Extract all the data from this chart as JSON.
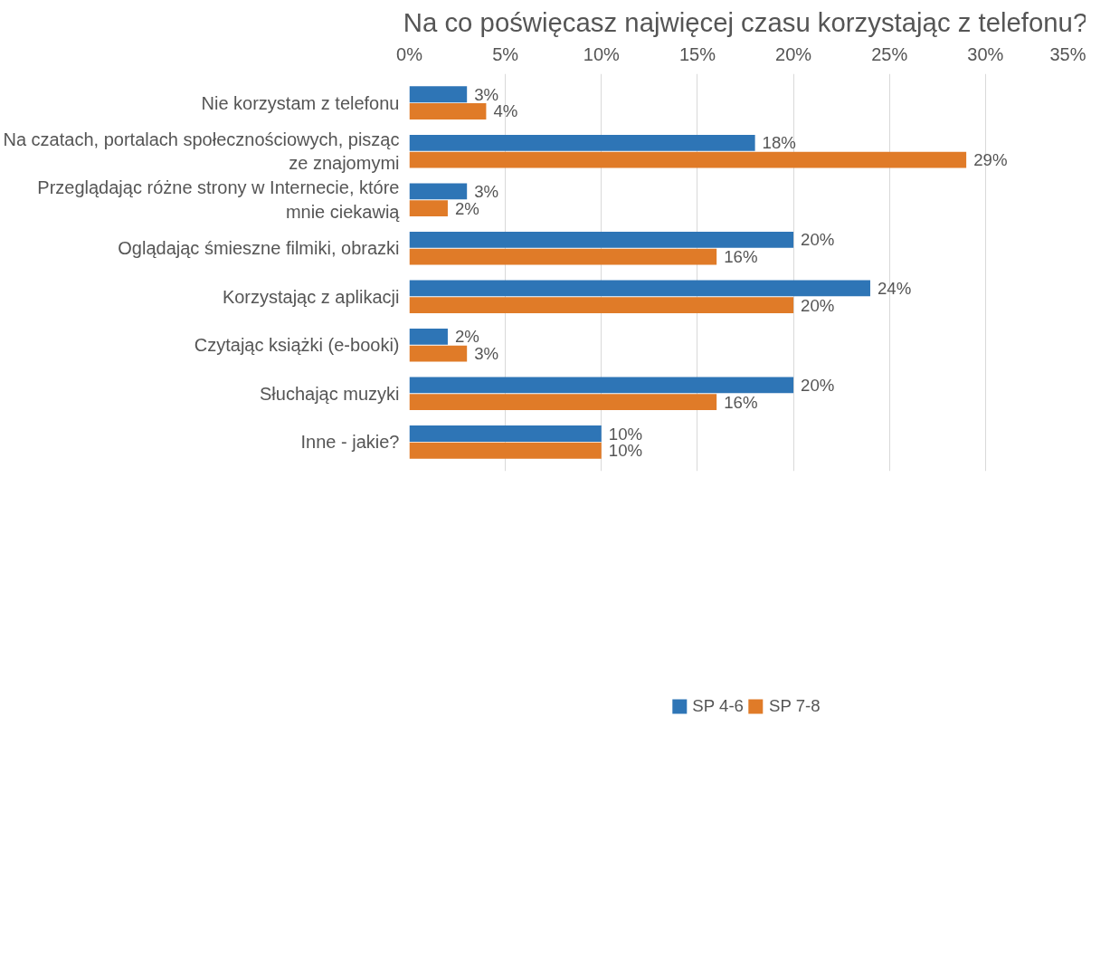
{
  "chart_data": {
    "type": "bar",
    "orientation": "horizontal",
    "title": "Na co poświęcasz najwięcej czasu korzystając z telefonu?",
    "categories": [
      "Nie korzystam z telefonu",
      "Na czatach, portalach społecznościowych, pisząc ze znajomymi",
      "Przeglądając różne strony w Internecie, które mnie ciekawią",
      "Oglądając śmieszne filmiki, obrazki",
      "Korzystając z aplikacji",
      "Czytając książki (e-booki)",
      "Słuchając muzyki",
      "Inne - jakie?"
    ],
    "series": [
      {
        "name": "SP 4-6",
        "color": "#2e75b6",
        "values": [
          3,
          18,
          3,
          20,
          24,
          2,
          20,
          10
        ],
        "value_labels": [
          "3%",
          "18%",
          "3%",
          "20%",
          "24%",
          "2%",
          "20%",
          "10%"
        ]
      },
      {
        "name": "SP 7-8",
        "color": "#e07b28",
        "values": [
          4,
          29,
          2,
          16,
          20,
          3,
          16,
          10
        ],
        "value_labels": [
          "4%",
          "29%",
          "2%",
          "16%",
          "20%",
          "3%",
          "16%",
          "10%"
        ]
      }
    ],
    "xlim": [
      0,
      35
    ],
    "xticks": [
      {
        "value": 0,
        "label": "0%"
      },
      {
        "value": 5,
        "label": "5%"
      },
      {
        "value": 10,
        "label": "10%"
      },
      {
        "value": 15,
        "label": "15%"
      },
      {
        "value": 20,
        "label": "20%"
      },
      {
        "value": 25,
        "label": "25%"
      },
      {
        "value": 30,
        "label": "30%"
      },
      {
        "value": 35,
        "label": "35%"
      }
    ],
    "grid": "x",
    "legend": "bottom"
  }
}
